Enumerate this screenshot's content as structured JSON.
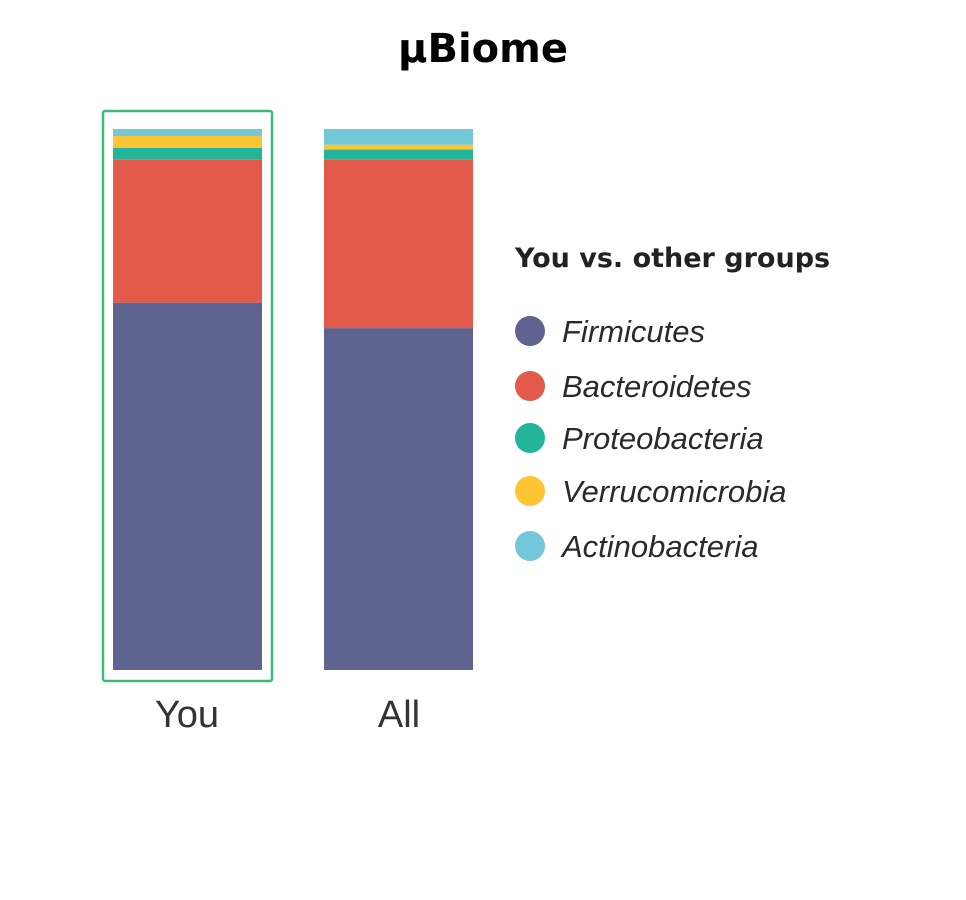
{
  "chart_data": {
    "type": "bar",
    "stacked": true,
    "title": "µBiome",
    "categories": [
      "You",
      "All"
    ],
    "highlighted_category": "You",
    "highlight_color": "#3dba7a",
    "unit": "percent",
    "ylim": [
      0,
      100
    ],
    "grid": false,
    "legend": {
      "title": "You vs. other groups",
      "placement": "right"
    },
    "series": [
      {
        "name": "Firmicutes",
        "color": "#5e6390",
        "values": [
          67.9,
          63.2
        ]
      },
      {
        "name": "Bacteroidetes",
        "color": "#e35a4a",
        "values": [
          26.4,
          31.2
        ]
      },
      {
        "name": "Proteobacteria",
        "color": "#22b59a",
        "values": [
          2.2,
          1.8
        ]
      },
      {
        "name": "Verrucomicrobia",
        "color": "#fdc532",
        "values": [
          2.2,
          0.9
        ]
      },
      {
        "name": "Actinobacteria",
        "color": "#72c7d8",
        "values": [
          1.3,
          2.9
        ]
      }
    ]
  }
}
